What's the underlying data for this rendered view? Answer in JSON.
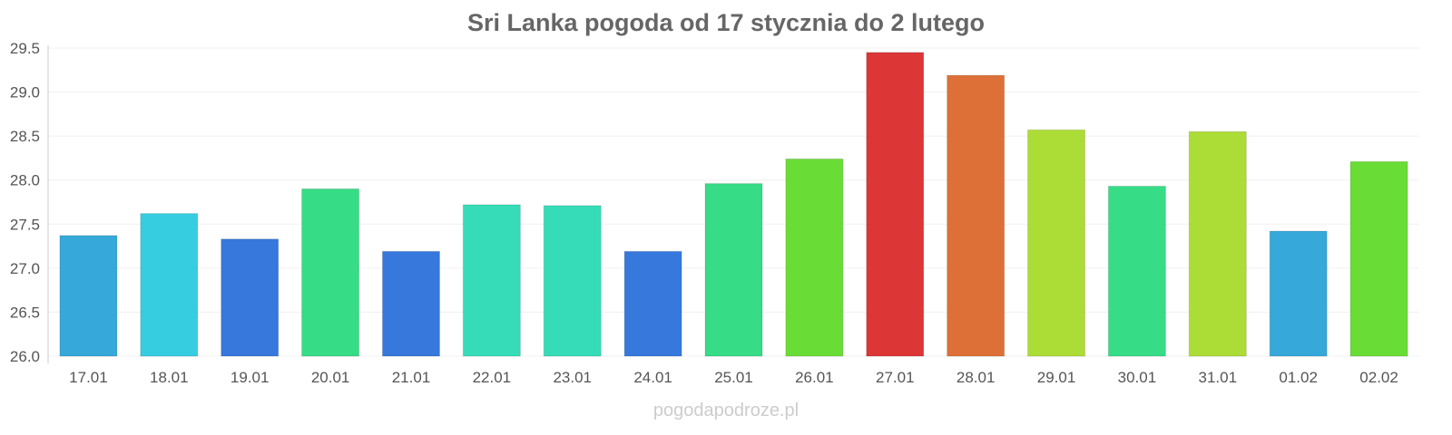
{
  "chart_data": {
    "type": "bar",
    "title": "Sri Lanka pogoda od 17 stycznia do 2 lutego",
    "xlabel": "",
    "ylabel": "",
    "ylim": [
      26.0,
      29.5
    ],
    "yticks": [
      "26.0",
      "26.5",
      "27.0",
      "27.5",
      "28.0",
      "28.5",
      "29.0",
      "29.5"
    ],
    "grid": true,
    "categories": [
      "17.01",
      "18.01",
      "19.01",
      "20.01",
      "21.01",
      "22.01",
      "23.01",
      "24.01",
      "25.01",
      "26.01",
      "27.01",
      "28.01",
      "29.01",
      "30.01",
      "31.01",
      "01.02",
      "02.02"
    ],
    "values": [
      27.37,
      27.62,
      27.33,
      27.9,
      27.19,
      27.72,
      27.71,
      27.19,
      27.96,
      28.24,
      29.45,
      29.19,
      28.57,
      27.93,
      28.55,
      27.42,
      28.21
    ],
    "colors": [
      "#36a8da",
      "#36cde0",
      "#3678dc",
      "#36dc86",
      "#3678dc",
      "#36dcb8",
      "#36dcb8",
      "#3678dc",
      "#36dc86",
      "#6adc36",
      "#dc3636",
      "#dc7036",
      "#acdc36",
      "#36dc86",
      "#acdc36",
      "#36a8da",
      "#6adc36"
    ]
  },
  "watermark": "pogodapodroze.pl"
}
